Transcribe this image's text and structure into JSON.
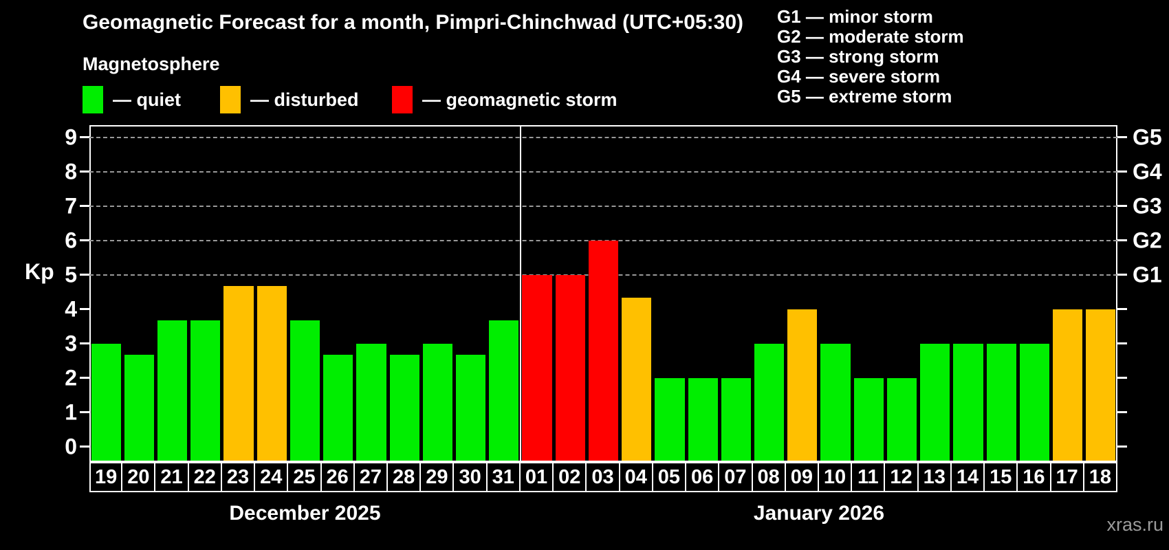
{
  "header": {
    "title": "Geomagnetic Forecast for a month, Pimpri-Chinchwad (UTC+05:30)",
    "subtitle": "Magnetosphere"
  },
  "legend": {
    "items": [
      {
        "id": "quiet",
        "label": "— quiet"
      },
      {
        "id": "disturbed",
        "label": "— disturbed"
      },
      {
        "id": "storm",
        "label": "— geomagnetic storm"
      }
    ]
  },
  "g_legend": {
    "items": [
      "G1 — minor storm",
      "G2 — moderate storm",
      "G3 — strong storm",
      "G4 — severe storm",
      "G5 — extreme storm"
    ]
  },
  "axis": {
    "ylabel": "Kp"
  },
  "watermark": "xras.ru",
  "chart_data": {
    "type": "bar",
    "title": "Geomagnetic Forecast for a month, Pimpri-Chinchwad (UTC+05:30)",
    "subtitle": "Magnetosphere",
    "ylabel": "Kp",
    "ylim": [
      0,
      9
    ],
    "yticks": [
      0,
      1,
      2,
      3,
      4,
      5,
      6,
      7,
      8,
      9
    ],
    "gridline_values": [
      5,
      6,
      7,
      8,
      9
    ],
    "right_axis_labels": [
      {
        "value": 5,
        "label": "G1"
      },
      {
        "value": 6,
        "label": "G2"
      },
      {
        "value": 7,
        "label": "G3"
      },
      {
        "value": 8,
        "label": "G4"
      },
      {
        "value": 9,
        "label": "G5"
      }
    ],
    "legend_position": "top-left",
    "grid": "dashed horizontal at Kp 5-9 only",
    "colors": {
      "quiet": "#00ee00",
      "disturbed": "#ffc000",
      "storm": "#ff0000",
      "grid": "#999999",
      "axis": "#ffffff",
      "background": "#000000",
      "watermark": "#9b9b9b"
    },
    "months": [
      {
        "label": "December 2025",
        "days": [
          {
            "day": "19",
            "kp": 3.0,
            "status": "quiet"
          },
          {
            "day": "20",
            "kp": 2.67,
            "status": "quiet"
          },
          {
            "day": "21",
            "kp": 3.67,
            "status": "quiet"
          },
          {
            "day": "22",
            "kp": 3.67,
            "status": "quiet"
          },
          {
            "day": "23",
            "kp": 4.67,
            "status": "disturbed"
          },
          {
            "day": "24",
            "kp": 4.67,
            "status": "disturbed"
          },
          {
            "day": "25",
            "kp": 3.67,
            "status": "quiet"
          },
          {
            "day": "26",
            "kp": 2.67,
            "status": "quiet"
          },
          {
            "day": "27",
            "kp": 3.0,
            "status": "quiet"
          },
          {
            "day": "28",
            "kp": 2.67,
            "status": "quiet"
          },
          {
            "day": "29",
            "kp": 3.0,
            "status": "quiet"
          },
          {
            "day": "30",
            "kp": 2.67,
            "status": "quiet"
          },
          {
            "day": "31",
            "kp": 3.67,
            "status": "quiet"
          }
        ]
      },
      {
        "label": "January 2026",
        "days": [
          {
            "day": "01",
            "kp": 5.0,
            "status": "storm"
          },
          {
            "day": "02",
            "kp": 5.0,
            "status": "storm"
          },
          {
            "day": "03",
            "kp": 6.0,
            "status": "storm"
          },
          {
            "day": "04",
            "kp": 4.33,
            "status": "disturbed"
          },
          {
            "day": "05",
            "kp": 2.0,
            "status": "quiet"
          },
          {
            "day": "06",
            "kp": 2.0,
            "status": "quiet"
          },
          {
            "day": "07",
            "kp": 2.0,
            "status": "quiet"
          },
          {
            "day": "08",
            "kp": 3.0,
            "status": "quiet"
          },
          {
            "day": "09",
            "kp": 4.0,
            "status": "disturbed"
          },
          {
            "day": "10",
            "kp": 3.0,
            "status": "quiet"
          },
          {
            "day": "11",
            "kp": 2.0,
            "status": "quiet"
          },
          {
            "day": "12",
            "kp": 2.0,
            "status": "quiet"
          },
          {
            "day": "13",
            "kp": 3.0,
            "status": "quiet"
          },
          {
            "day": "14",
            "kp": 3.0,
            "status": "quiet"
          },
          {
            "day": "15",
            "kp": 3.0,
            "status": "quiet"
          },
          {
            "day": "16",
            "kp": 3.0,
            "status": "quiet"
          },
          {
            "day": "17",
            "kp": 4.0,
            "status": "disturbed"
          },
          {
            "day": "18",
            "kp": 4.0,
            "status": "disturbed"
          }
        ]
      }
    ]
  }
}
